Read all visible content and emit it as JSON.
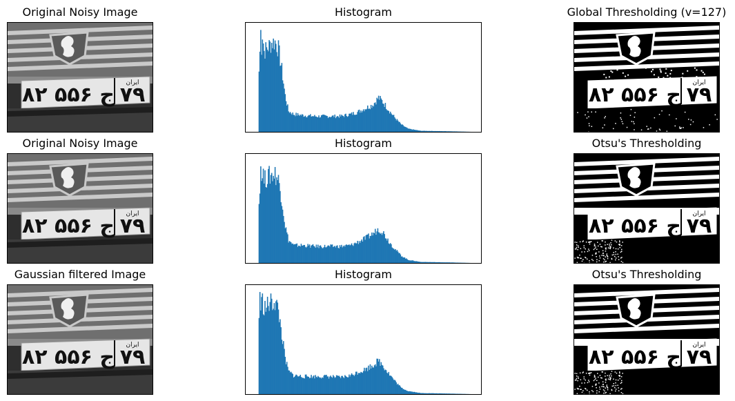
{
  "figure": {
    "rows": [
      {
        "left_title": "Original Noisy Image",
        "middle_title": "Histogram",
        "right_title": "Global Thresholding (v=127)"
      },
      {
        "left_title": "Original Noisy Image",
        "middle_title": "Histogram",
        "right_title": "Otsu's Thresholding"
      },
      {
        "left_title": "Gaussian filtered Image",
        "middle_title": "Histogram",
        "right_title": "Otsu's Thresholding"
      }
    ],
    "colors": {
      "histogram": "#1f77b4",
      "frame": "#000000"
    },
    "plate_text": "۸۲ ج ۵۵۶ ۷۹",
    "plate_header": "ایران"
  },
  "chart_data": [
    {
      "type": "bar",
      "title": "Histogram",
      "xlim": [
        0,
        255
      ],
      "ylim": [
        0,
        1
      ],
      "grid": false,
      "bins": [
        {
          "x": 0,
          "y": 0
        },
        {
          "x": 5,
          "y": 0.97
        },
        {
          "x": 6,
          "y": 0.82
        },
        {
          "x": 7,
          "y": 0.95
        },
        {
          "x": 9,
          "y": 0.78
        },
        {
          "x": 12,
          "y": 0.8
        },
        {
          "x": 15,
          "y": 0.83
        },
        {
          "x": 18,
          "y": 0.86
        },
        {
          "x": 22,
          "y": 0.87
        },
        {
          "x": 26,
          "y": 0.8
        },
        {
          "x": 30,
          "y": 0.6
        },
        {
          "x": 34,
          "y": 0.35
        },
        {
          "x": 38,
          "y": 0.2
        },
        {
          "x": 44,
          "y": 0.17
        },
        {
          "x": 55,
          "y": 0.16
        },
        {
          "x": 70,
          "y": 0.15
        },
        {
          "x": 85,
          "y": 0.15
        },
        {
          "x": 100,
          "y": 0.15
        },
        {
          "x": 112,
          "y": 0.17
        },
        {
          "x": 120,
          "y": 0.19
        },
        {
          "x": 130,
          "y": 0.23
        },
        {
          "x": 138,
          "y": 0.26
        },
        {
          "x": 145,
          "y": 0.33
        },
        {
          "x": 150,
          "y": 0.29
        },
        {
          "x": 158,
          "y": 0.2
        },
        {
          "x": 165,
          "y": 0.13
        },
        {
          "x": 172,
          "y": 0.07
        },
        {
          "x": 180,
          "y": 0.03
        },
        {
          "x": 195,
          "y": 0.01
        },
        {
          "x": 230,
          "y": 0.005
        },
        {
          "x": 255,
          "y": 0
        }
      ]
    },
    {
      "type": "bar",
      "title": "Histogram",
      "xlim": [
        0,
        255
      ],
      "ylim": [
        0,
        1
      ],
      "grid": false,
      "bins": [
        {
          "x": 0,
          "y": 0
        },
        {
          "x": 5,
          "y": 0.95
        },
        {
          "x": 6,
          "y": 0.8
        },
        {
          "x": 7,
          "y": 0.92
        },
        {
          "x": 9,
          "y": 0.8
        },
        {
          "x": 12,
          "y": 0.82
        },
        {
          "x": 15,
          "y": 0.84
        },
        {
          "x": 18,
          "y": 0.85
        },
        {
          "x": 22,
          "y": 0.86
        },
        {
          "x": 26,
          "y": 0.8
        },
        {
          "x": 30,
          "y": 0.62
        },
        {
          "x": 34,
          "y": 0.36
        },
        {
          "x": 38,
          "y": 0.22
        },
        {
          "x": 44,
          "y": 0.17
        },
        {
          "x": 55,
          "y": 0.17
        },
        {
          "x": 70,
          "y": 0.16
        },
        {
          "x": 85,
          "y": 0.16
        },
        {
          "x": 100,
          "y": 0.16
        },
        {
          "x": 112,
          "y": 0.17
        },
        {
          "x": 120,
          "y": 0.2
        },
        {
          "x": 130,
          "y": 0.24
        },
        {
          "x": 138,
          "y": 0.28
        },
        {
          "x": 145,
          "y": 0.33
        },
        {
          "x": 150,
          "y": 0.3
        },
        {
          "x": 158,
          "y": 0.2
        },
        {
          "x": 165,
          "y": 0.13
        },
        {
          "x": 172,
          "y": 0.07
        },
        {
          "x": 180,
          "y": 0.03
        },
        {
          "x": 195,
          "y": 0.01
        },
        {
          "x": 230,
          "y": 0.005
        },
        {
          "x": 255,
          "y": 0
        }
      ]
    },
    {
      "type": "bar",
      "title": "Histogram",
      "xlim": [
        0,
        255
      ],
      "ylim": [
        0,
        1
      ],
      "grid": false,
      "bins": [
        {
          "x": 0,
          "y": 0
        },
        {
          "x": 4,
          "y": 0.98
        },
        {
          "x": 5,
          "y": 0.85
        },
        {
          "x": 7,
          "y": 0.9
        },
        {
          "x": 9,
          "y": 0.83
        },
        {
          "x": 12,
          "y": 0.84
        },
        {
          "x": 15,
          "y": 0.87
        },
        {
          "x": 18,
          "y": 0.88
        },
        {
          "x": 22,
          "y": 0.9
        },
        {
          "x": 26,
          "y": 0.8
        },
        {
          "x": 30,
          "y": 0.58
        },
        {
          "x": 34,
          "y": 0.34
        },
        {
          "x": 38,
          "y": 0.22
        },
        {
          "x": 44,
          "y": 0.18
        },
        {
          "x": 55,
          "y": 0.17
        },
        {
          "x": 70,
          "y": 0.17
        },
        {
          "x": 85,
          "y": 0.17
        },
        {
          "x": 100,
          "y": 0.16
        },
        {
          "x": 112,
          "y": 0.18
        },
        {
          "x": 120,
          "y": 0.21
        },
        {
          "x": 130,
          "y": 0.24
        },
        {
          "x": 138,
          "y": 0.28
        },
        {
          "x": 145,
          "y": 0.32
        },
        {
          "x": 150,
          "y": 0.28
        },
        {
          "x": 158,
          "y": 0.19
        },
        {
          "x": 165,
          "y": 0.12
        },
        {
          "x": 172,
          "y": 0.06
        },
        {
          "x": 180,
          "y": 0.03
        },
        {
          "x": 195,
          "y": 0.01
        },
        {
          "x": 230,
          "y": 0.005
        },
        {
          "x": 255,
          "y": 0
        }
      ]
    }
  ]
}
